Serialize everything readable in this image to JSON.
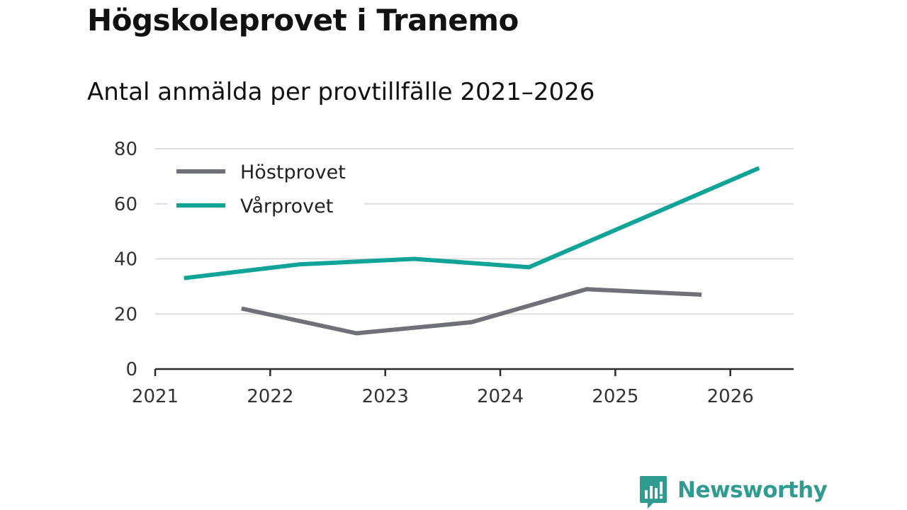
{
  "title": "Högskoleprovet i Tranemo",
  "subtitle": "Antal anmälda per provtillfälle 2021–2026",
  "brand": {
    "name": "Newsworthy",
    "color": "#2f9b91",
    "icon": "bar-chart-speech-bubble-icon"
  },
  "chart_data": {
    "type": "line",
    "title": "Högskoleprovet i Tranemo",
    "subtitle": "Antal anmälda per provtillfälle 2021–2026",
    "xlabel": "",
    "ylabel": "",
    "xlim": [
      2021,
      2026.55
    ],
    "ylim": [
      0,
      80
    ],
    "x_ticks": [
      2021,
      2022,
      2023,
      2024,
      2025,
      2026
    ],
    "x_tick_labels": [
      "2021",
      "2022",
      "2023",
      "2024",
      "2025",
      "2026"
    ],
    "y_ticks": [
      0,
      20,
      40,
      60,
      80
    ],
    "y_tick_labels": [
      "0",
      "20",
      "40",
      "60",
      "80"
    ],
    "grid": true,
    "legend_position": "top-left",
    "series": [
      {
        "name": "Höstprovet",
        "color": "#707078",
        "x": [
          2021.75,
          2022.75,
          2023.75,
          2024.75,
          2025.75
        ],
        "values": [
          22,
          13,
          17,
          29,
          27
        ]
      },
      {
        "name": "Vårprovet",
        "color": "#10a398",
        "x": [
          2021.25,
          2022.25,
          2023.25,
          2024.25,
          2025.25,
          2026.25
        ],
        "values": [
          33,
          38,
          40,
          37,
          55,
          73
        ]
      }
    ]
  }
}
